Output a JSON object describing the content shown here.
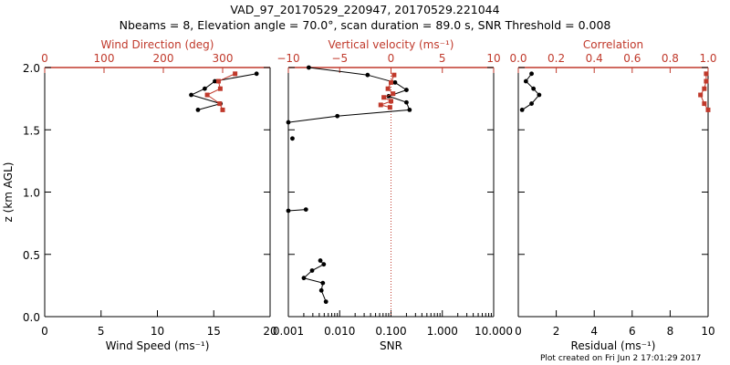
{
  "title_line1": "VAD_97_20170529_220947, 20170529.221044",
  "title_line2": "Nbeams = 8, Elevation angle = 70.0°, scan duration = 89.0 s, SNR Threshold = 0.008",
  "footer": "Plot created on Fri Jun  2 17:01:29 2017",
  "colors": {
    "primary": "#000000",
    "secondary": "#c0392b"
  },
  "chart_data": [
    {
      "type": "line",
      "ylabel": "z (km AGL)",
      "ylim": [
        0,
        2
      ],
      "yticks": [
        0,
        0.5,
        1,
        1.5,
        2
      ],
      "ytick_labels": [
        "0.0",
        "0.5",
        "1.0",
        "1.5",
        "2.0"
      ],
      "xlabel": "Wind Speed (ms⁻¹)",
      "xlim": [
        0,
        20
      ],
      "xticks": [
        0,
        5,
        10,
        15,
        20
      ],
      "xtick_labels": [
        "0",
        "5",
        "10",
        "15",
        "20"
      ],
      "top_xlabel": "Wind Direction (deg)",
      "top_xlim": [
        0,
        380
      ],
      "top_xticks": [
        0,
        100,
        200,
        300
      ],
      "top_xtick_labels": [
        "0",
        "100",
        "200",
        "300"
      ],
      "series": [
        {
          "name": "Wind Speed",
          "axis": "bottom",
          "color": "#000000",
          "x": [
            18.8,
            15.1,
            14.2,
            13.0,
            15.6,
            13.6
          ],
          "y": [
            1.95,
            1.89,
            1.83,
            1.78,
            1.71,
            1.66
          ]
        },
        {
          "name": "Wind Direction",
          "axis": "top",
          "color": "#c0392b",
          "x": [
            321,
            293,
            296,
            274,
            295,
            300
          ],
          "y": [
            1.95,
            1.89,
            1.83,
            1.78,
            1.71,
            1.66
          ]
        }
      ]
    },
    {
      "type": "line",
      "xlabel": "SNR",
      "xscale": "log",
      "xlim": [
        0.001,
        10
      ],
      "xticks": [
        0.001,
        0.01,
        0.1,
        1,
        10
      ],
      "xtick_labels": [
        "0.001",
        "0.010",
        "0.100",
        "1.000",
        "10.000"
      ],
      "top_xlabel": "Vertical velocity (ms⁻¹)",
      "top_xlim": [
        -10,
        10
      ],
      "top_xticks": [
        -10,
        -5,
        0,
        5,
        10
      ],
      "top_xtick_labels": [
        "−10",
        "−5",
        "0",
        "5",
        "10"
      ],
      "zero_line": 0,
      "series": [
        {
          "name": "SNR",
          "axis": "bottom",
          "color": "#000000",
          "segments": [
            {
              "x": [
                0.0025,
                0.035,
                0.12,
                0.2,
                0.09,
                0.2,
                0.23,
                0.009,
                0.001
              ],
              "y": [
                2.0,
                1.94,
                1.88,
                1.82,
                1.77,
                1.72,
                1.66,
                1.61,
                1.56
              ]
            },
            {
              "x": [
                0.0012
              ],
              "y": [
                1.43
              ]
            },
            {
              "x": [
                0.001,
                0.0022
              ],
              "y": [
                0.85,
                0.86
              ]
            },
            {
              "x": [
                0.0042,
                0.0049,
                0.0029,
                0.002,
                0.0047,
                0.0044,
                0.0054
              ],
              "y": [
                0.45,
                0.42,
                0.37,
                0.31,
                0.27,
                0.21,
                0.12
              ]
            }
          ]
        },
        {
          "name": "Vertical velocity",
          "axis": "top",
          "color": "#c0392b",
          "segments": [
            {
              "x": [
                0.3,
                0.0,
                -0.3,
                0.2,
                -0.7,
                0.0,
                -1.0,
                -0.1
              ],
              "y": [
                1.94,
                1.88,
                1.83,
                1.79,
                1.76,
                1.73,
                1.7,
                1.68
              ]
            }
          ]
        }
      ]
    },
    {
      "type": "line",
      "xlabel": "Residual (ms⁻¹)",
      "xlim": [
        0,
        10
      ],
      "xticks": [
        0,
        2,
        4,
        6,
        8,
        10
      ],
      "xtick_labels": [
        "0",
        "2",
        "4",
        "6",
        "8",
        "10"
      ],
      "top_xlabel": "Correlation",
      "top_xlim": [
        0,
        1
      ],
      "top_xticks": [
        0,
        0.2,
        0.4,
        0.6,
        0.8,
        1
      ],
      "top_xtick_labels": [
        "0.0",
        "0.2",
        "0.4",
        "0.6",
        "0.8",
        "1.0"
      ],
      "series": [
        {
          "name": "Residual",
          "axis": "bottom",
          "color": "#000000",
          "x": [
            0.7,
            0.4,
            0.8,
            1.1,
            0.7,
            0.2
          ],
          "y": [
            1.95,
            1.89,
            1.83,
            1.78,
            1.71,
            1.66
          ]
        },
        {
          "name": "Correlation",
          "axis": "top",
          "color": "#c0392b",
          "x": [
            0.99,
            0.99,
            0.98,
            0.96,
            0.98,
            1.0
          ],
          "y": [
            1.95,
            1.89,
            1.83,
            1.78,
            1.71,
            1.66
          ]
        }
      ]
    }
  ]
}
